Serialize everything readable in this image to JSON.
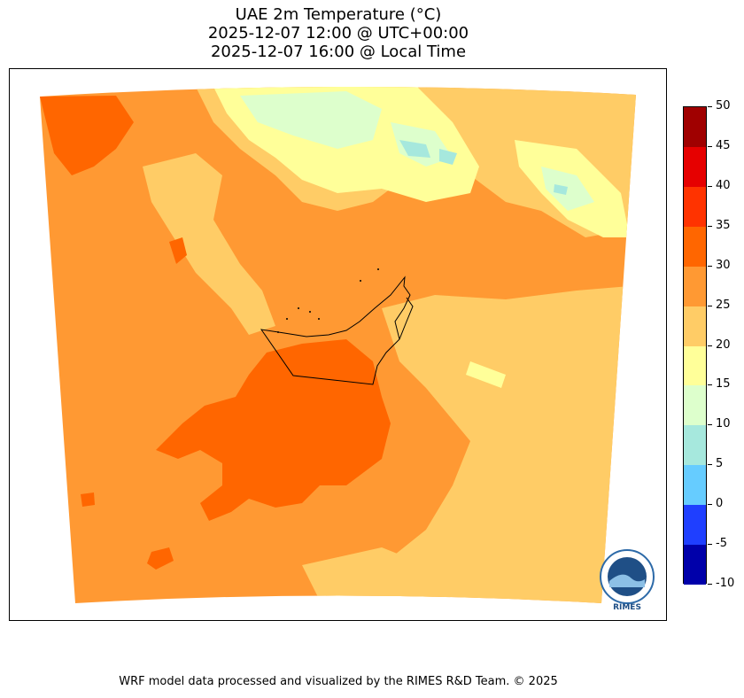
{
  "title": {
    "line1": "UAE 2m Temperature (°C)",
    "line2": "2025-12-07 12:00 @ UTC+00:00",
    "line3": "2025-12-07 16:00 @ Local Time"
  },
  "colorbar": {
    "ticks": [
      "50",
      "45",
      "40",
      "35",
      "30",
      "25",
      "20",
      "15",
      "10",
      "5",
      "0",
      "-5",
      "-10"
    ],
    "bins_top_to_bottom": [
      {
        "range": "45-50",
        "color": "#a00000"
      },
      {
        "range": "40-45",
        "color": "#e60000"
      },
      {
        "range": "35-40",
        "color": "#ff3300"
      },
      {
        "range": "30-35",
        "color": "#ff6600"
      },
      {
        "range": "25-30",
        "color": "#ff9933"
      },
      {
        "range": "20-25",
        "color": "#ffcc66"
      },
      {
        "range": "15-20",
        "color": "#ffff99"
      },
      {
        "range": "10-15",
        "color": "#ddffcc"
      },
      {
        "range": "5-10",
        "color": "#a6e8dd"
      },
      {
        "range": "0-5",
        "color": "#66ccff"
      },
      {
        "range": "-5-0",
        "color": "#1f3fff"
      },
      {
        "range": "-10--5",
        "color": "#0000aa"
      }
    ]
  },
  "logo": {
    "text": "RIMES",
    "ring_text": "Regional Integrated Multi-Hazard Early Warning System"
  },
  "footer": "WRF model data processed and visualized by the RIMES R&D Team. © 2025"
}
